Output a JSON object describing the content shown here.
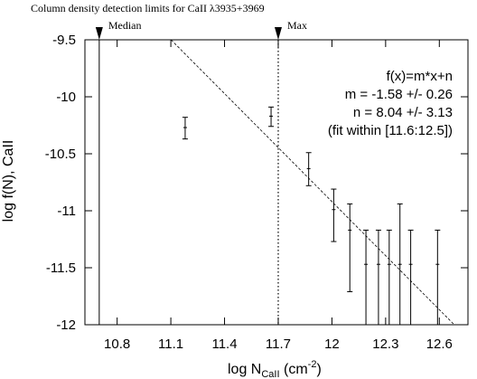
{
  "chart_data": {
    "type": "scatter",
    "title_main": "Column density detection limits for CaII ",
    "title_lambda": "λ3935+3969",
    "xlabel_prefix": "log N",
    "xlabel_sub": "CaII",
    "xlabel_unit_open": " (cm",
    "xlabel_sup": "-2",
    "xlabel_unit_close": ")",
    "ylabel": "log f(N), CaII",
    "xlim": [
      10.62,
      12.76
    ],
    "ylim": [
      -12.0,
      -9.5
    ],
    "xticks": [
      10.8,
      11.1,
      11.4,
      11.7,
      12.0,
      12.3,
      12.6
    ],
    "xtick_labels": [
      "10.8",
      "11.1",
      "11.4",
      "11.7",
      "12",
      "12.3",
      "12.6"
    ],
    "yticks": [
      -12.0,
      -11.5,
      -11.0,
      -10.5,
      -10.0,
      -9.5
    ],
    "ytick_labels": [
      "-12",
      "-11.5",
      "-11",
      "-10.5",
      "-10",
      "-9.5"
    ],
    "grid": false,
    "points": [
      {
        "x": 11.18,
        "y": -10.27,
        "ylo": -10.37,
        "yhi": -10.18
      },
      {
        "x": 11.66,
        "y": -10.17,
        "ylo": -10.26,
        "yhi": -10.09
      },
      {
        "x": 11.87,
        "y": -10.63,
        "ylo": -10.78,
        "yhi": -10.49
      },
      {
        "x": 12.01,
        "y": -10.99,
        "ylo": -11.27,
        "yhi": -10.81
      },
      {
        "x": 12.1,
        "y": -11.17,
        "ylo": -11.71,
        "yhi": -10.94
      },
      {
        "x": 12.19,
        "y": -11.47,
        "ylo": -12.0,
        "yhi": -11.17
      },
      {
        "x": 12.26,
        "y": -11.47,
        "ylo": -12.0,
        "yhi": -11.17
      },
      {
        "x": 12.32,
        "y": -11.47,
        "ylo": -12.0,
        "yhi": -11.17
      },
      {
        "x": 12.38,
        "y": -11.47,
        "ylo": -12.0,
        "yhi": -10.94
      },
      {
        "x": 12.44,
        "y": -11.47,
        "ylo": -12.0,
        "yhi": -11.17
      },
      {
        "x": 12.59,
        "y": -11.47,
        "ylo": -12.0,
        "yhi": -11.17
      }
    ],
    "fit": {
      "m": -1.58,
      "n": 8.04
    },
    "annotations": [
      "f(x)=m*x+n",
      "m = -1.58 +/- 0.26",
      "n = 8.04 +/- 3.13",
      "(fit within [11.6:12.5])"
    ],
    "vlines": [
      {
        "label": "Median",
        "x": 10.7,
        "style": "solid"
      },
      {
        "label": "Max",
        "x": 11.7,
        "style": "dotted"
      }
    ]
  }
}
